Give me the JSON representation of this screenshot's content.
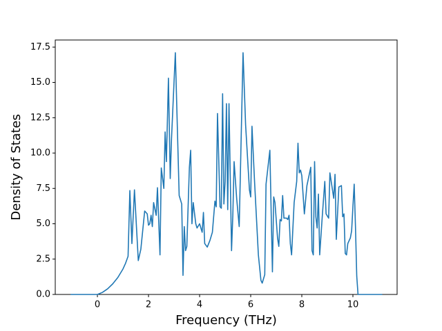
{
  "chart_data": {
    "type": "line",
    "x_label": "Frequency (THz)",
    "y_label": "Density of States",
    "x": [
      -1.05,
      0,
      0.2,
      0.4,
      0.6,
      0.8,
      1.0,
      1.1,
      1.2,
      1.27,
      1.35,
      1.45,
      1.6,
      1.7,
      1.8,
      1.85,
      1.95,
      2.0,
      2.05,
      2.1,
      2.15,
      2.2,
      2.3,
      2.35,
      2.45,
      2.5,
      2.6,
      2.65,
      2.7,
      2.78,
      2.85,
      2.9,
      3.05,
      3.2,
      3.3,
      3.35,
      3.4,
      3.45,
      3.5,
      3.6,
      3.65,
      3.7,
      3.75,
      3.85,
      3.9,
      4.0,
      4.1,
      4.15,
      4.2,
      4.3,
      4.4,
      4.5,
      4.6,
      4.65,
      4.7,
      4.8,
      4.85,
      4.9,
      4.95,
      5.0,
      5.05,
      5.1,
      5.15,
      5.25,
      5.3,
      5.35,
      5.45,
      5.55,
      5.7,
      5.8,
      5.95,
      6.0,
      6.05,
      6.15,
      6.3,
      6.4,
      6.45,
      6.55,
      6.6,
      6.75,
      6.85,
      6.9,
      6.95,
      7.05,
      7.1,
      7.15,
      7.2,
      7.25,
      7.3,
      7.4,
      7.45,
      7.5,
      7.55,
      7.6,
      7.7,
      7.8,
      7.85,
      7.9,
      7.95,
      8.0,
      8.1,
      8.2,
      8.35,
      8.4,
      8.45,
      8.5,
      8.55,
      8.6,
      8.65,
      8.7,
      8.8,
      8.9,
      8.95,
      9.05,
      9.1,
      9.25,
      9.3,
      9.35,
      9.45,
      9.55,
      9.6,
      9.65,
      9.7,
      9.75,
      9.8,
      9.9,
      9.95,
      10.0,
      10.05,
      10.1,
      10.15,
      10.2,
      11.15
    ],
    "series": [
      {
        "color": "#1f77b4",
        "values": [
          0,
          0,
          0.15,
          0.4,
          0.75,
          1.2,
          1.8,
          2.2,
          2.7,
          7.35,
          3.6,
          7.4,
          2.4,
          3.2,
          5.0,
          5.9,
          5.7,
          4.9,
          5.0,
          5.6,
          4.8,
          6.5,
          5.6,
          7.55,
          2.8,
          8.95,
          7.5,
          11.5,
          9.4,
          15.3,
          8.2,
          11.0,
          17.1,
          7.0,
          6.4,
          1.35,
          4.8,
          3.1,
          3.4,
          9.0,
          10.2,
          5.0,
          6.5,
          5.0,
          4.7,
          5.0,
          4.4,
          5.8,
          3.6,
          3.35,
          3.8,
          4.4,
          6.6,
          6.2,
          12.8,
          6.2,
          6.1,
          14.2,
          6.4,
          8.0,
          13.5,
          6.0,
          13.5,
          3.1,
          5.6,
          9.4,
          6.8,
          4.8,
          17.1,
          12.0,
          7.4,
          6.9,
          11.9,
          8.0,
          2.8,
          1.0,
          0.8,
          1.4,
          7.8,
          10.2,
          1.6,
          6.9,
          6.5,
          4.0,
          3.4,
          5.3,
          5.2,
          7.0,
          5.4,
          5.4,
          5.3,
          5.6,
          3.6,
          2.8,
          6.5,
          8.0,
          10.7,
          8.6,
          8.8,
          8.4,
          5.7,
          7.7,
          9.0,
          3.1,
          2.8,
          9.4,
          5.5,
          4.7,
          7.1,
          2.8,
          5.5,
          8.0,
          5.7,
          5.4,
          8.6,
          6.8,
          8.5,
          3.9,
          7.6,
          7.7,
          5.5,
          5.7,
          2.9,
          2.8,
          3.6,
          4.0,
          4.5,
          6.2,
          7.8,
          4.8,
          1.3,
          0,
          0
        ]
      }
    ],
    "xlim": [
      -1.65,
      11.73
    ],
    "ylim": [
      0,
      18
    ],
    "xticks": [
      0,
      2,
      4,
      6,
      8,
      10
    ],
    "yticks": [
      {
        "value": 0,
        "label": "0.0"
      },
      2.5,
      {
        "value": 5,
        "label": "5.0"
      },
      7.5,
      {
        "value": 10,
        "label": "10.0"
      },
      12.5,
      {
        "value": 15,
        "label": "15.0"
      },
      17.5
    ]
  }
}
